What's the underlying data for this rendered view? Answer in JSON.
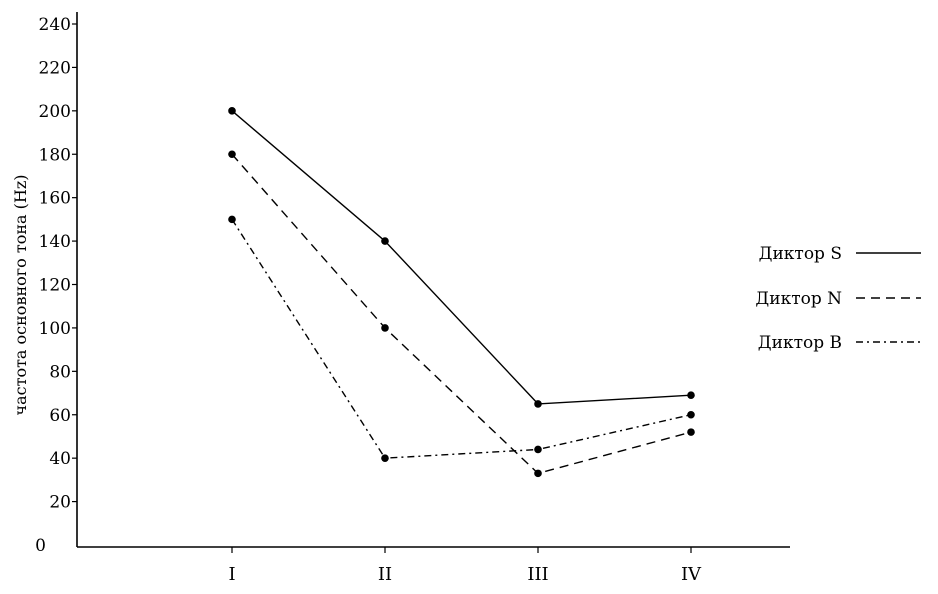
{
  "chart_data": {
    "type": "line",
    "title": "",
    "xlabel": "",
    "ylabel": "частота основного тона (Hz)",
    "ylim": [
      0,
      240
    ],
    "yticks": [
      0,
      20,
      40,
      60,
      80,
      100,
      120,
      140,
      160,
      180,
      200,
      220,
      240
    ],
    "categories": [
      "I",
      "II",
      "III",
      "IV"
    ],
    "grid": false,
    "legend_position": "right",
    "series": [
      {
        "name": "Диктор S",
        "values": [
          200,
          140,
          65,
          69
        ],
        "line_style": "solid"
      },
      {
        "name": "Диктор N",
        "values": [
          180,
          100,
          33,
          52
        ],
        "line_style": "dashed"
      },
      {
        "name": "Диктор B",
        "values": [
          150,
          40,
          44,
          60
        ],
        "line_style": "dash-dot"
      }
    ],
    "colors": {
      "line": "#000000",
      "marker": "#000000"
    }
  }
}
